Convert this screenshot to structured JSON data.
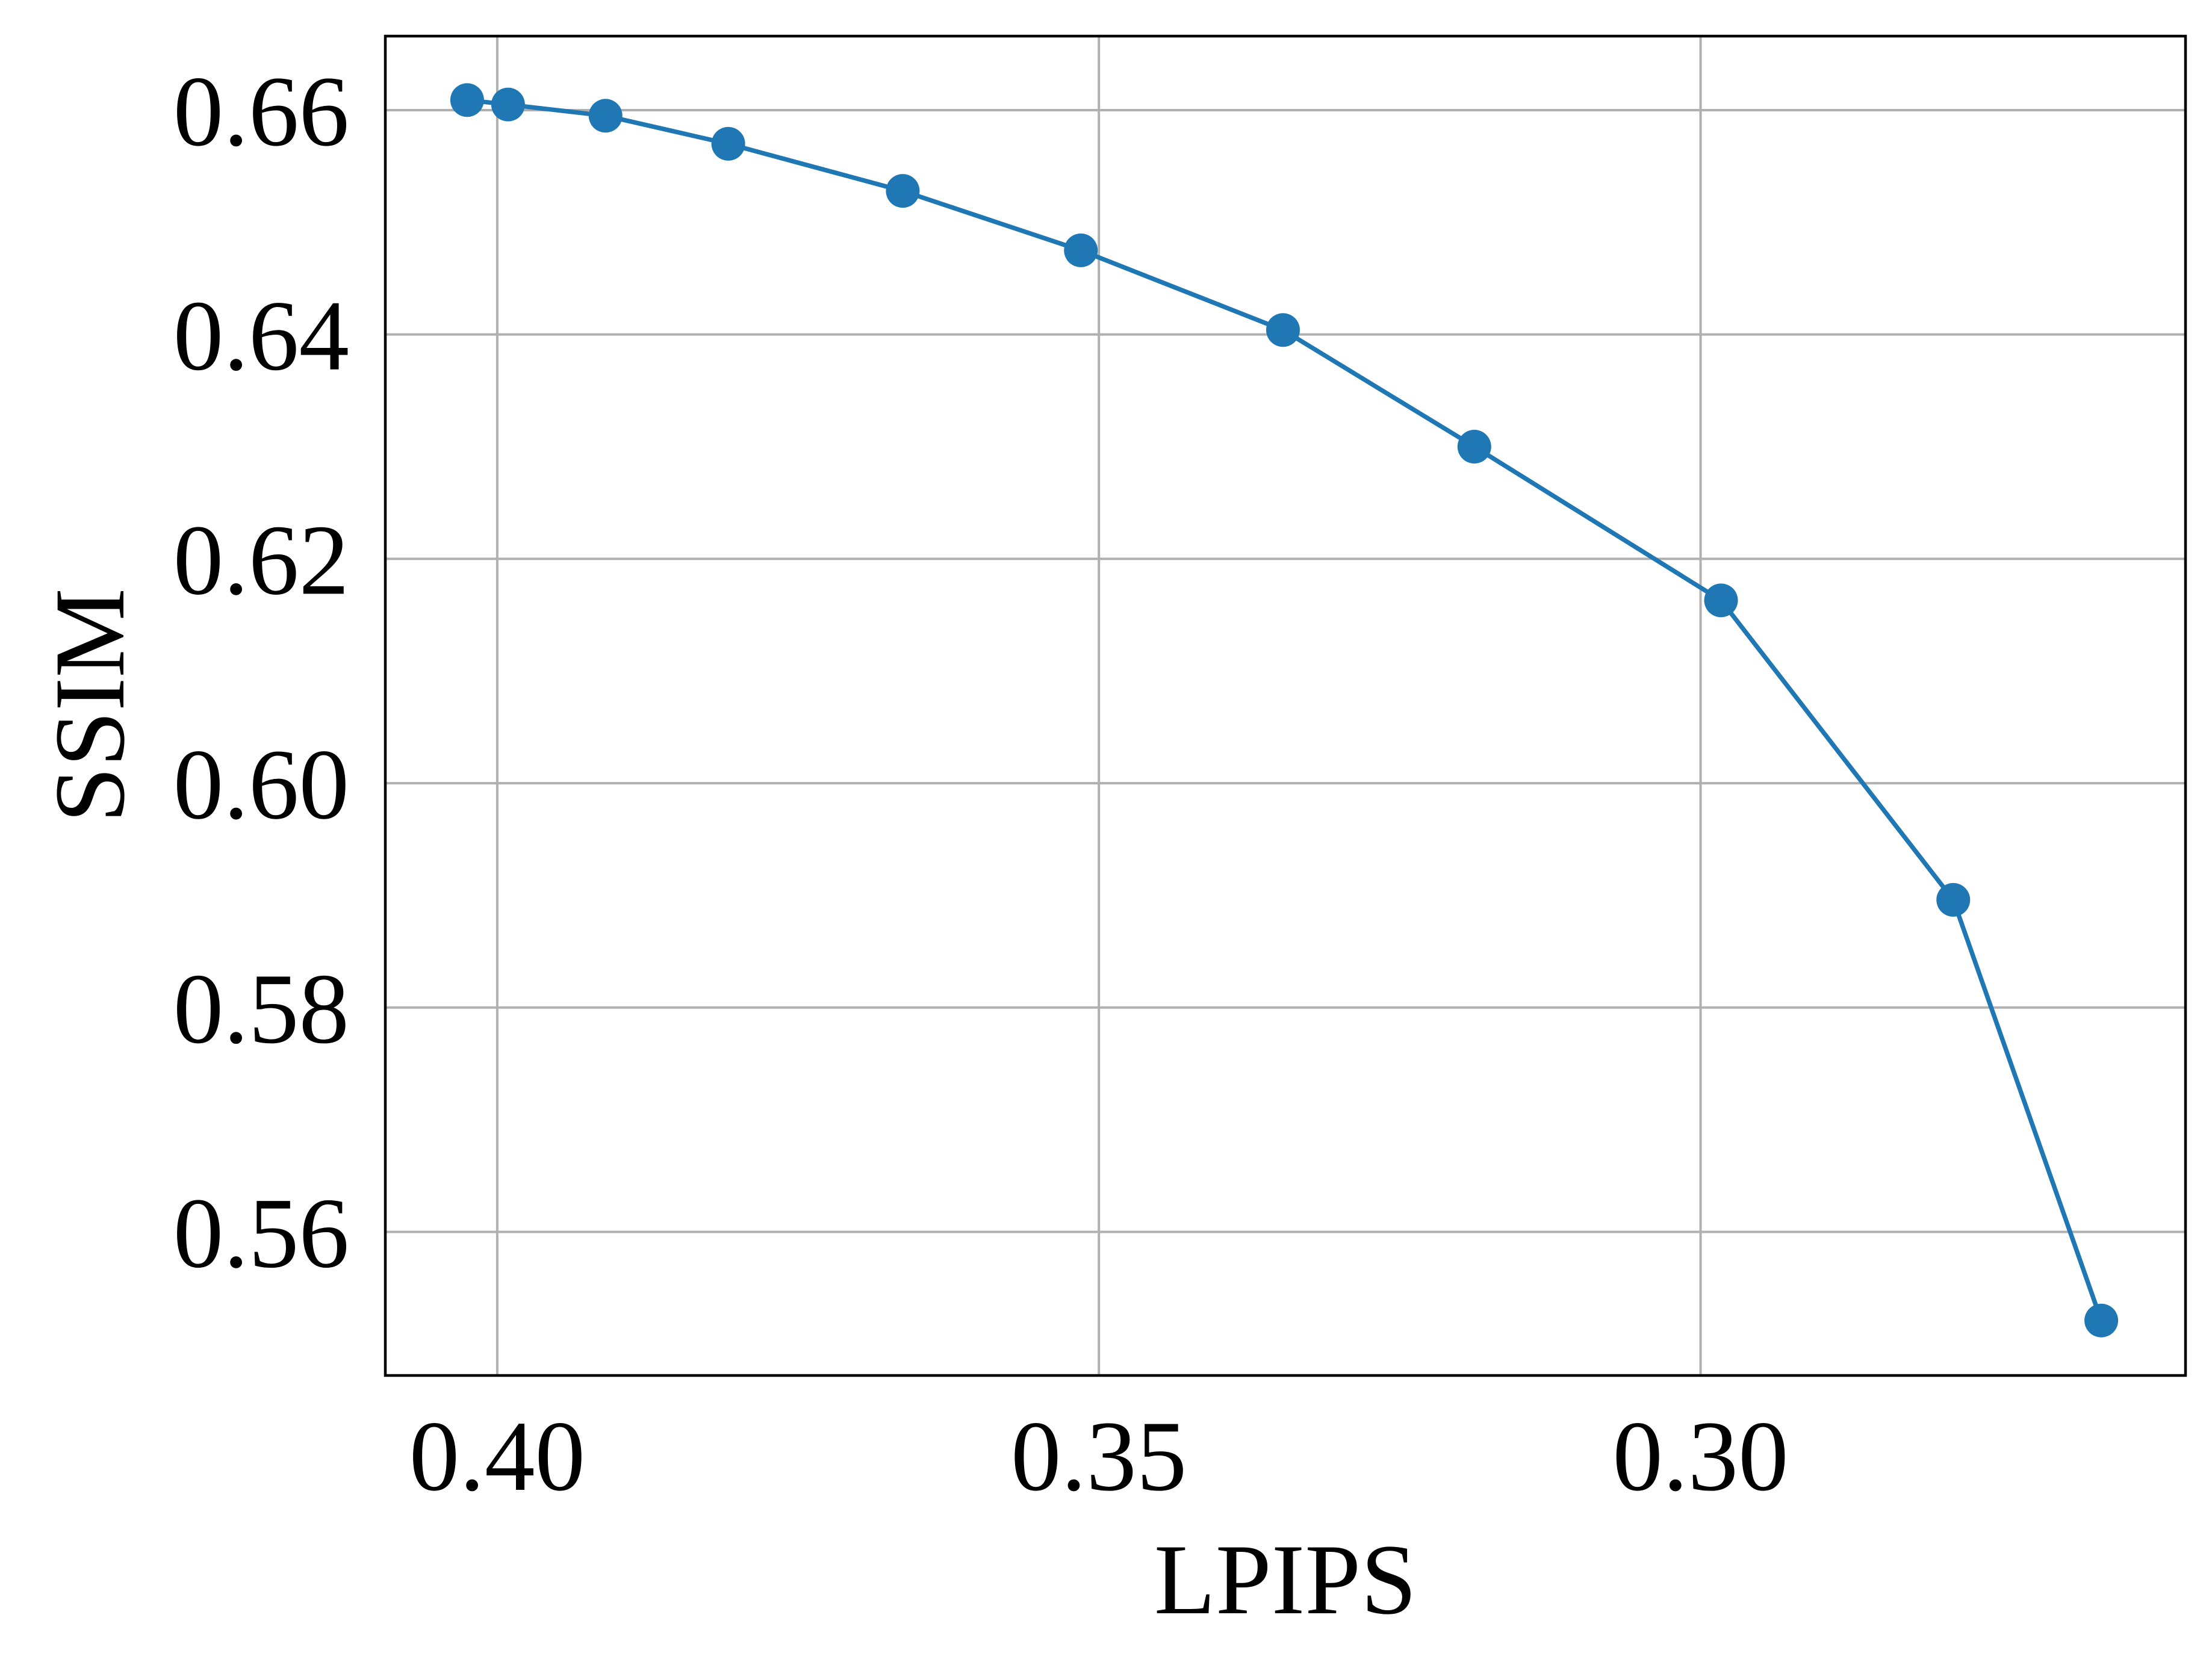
{
  "chart_data": {
    "type": "line",
    "title": "",
    "xlabel": "LPIPS",
    "ylabel": "SSIM",
    "x_inverted": true,
    "xlim": [
      0.4093,
      0.2597
    ],
    "ylim": [
      0.5472,
      0.6666
    ],
    "xticks": [
      0.4,
      0.35,
      0.3
    ],
    "xtick_labels": [
      "0.40",
      "0.35",
      "0.30"
    ],
    "yticks": [
      0.56,
      0.58,
      0.6,
      0.62,
      0.64,
      0.66
    ],
    "ytick_labels": [
      "0.56",
      "0.58",
      "0.60",
      "0.62",
      "0.64",
      "0.66"
    ],
    "grid": true,
    "legend": false,
    "colors": {
      "series": "#1f77b4",
      "grid": "#b0b0b0",
      "frame": "#000000"
    },
    "series": [
      {
        "marker": "circle",
        "x": [
          0.4025,
          0.3991,
          0.391,
          0.3808,
          0.3663,
          0.3515,
          0.3347,
          0.3188,
          0.2983,
          0.279,
          0.2667
        ],
        "y": [
          0.6609,
          0.6605,
          0.6595,
          0.657,
          0.6528,
          0.6475,
          0.6404,
          0.63,
          0.6163,
          0.5896,
          0.5521
        ]
      }
    ]
  }
}
